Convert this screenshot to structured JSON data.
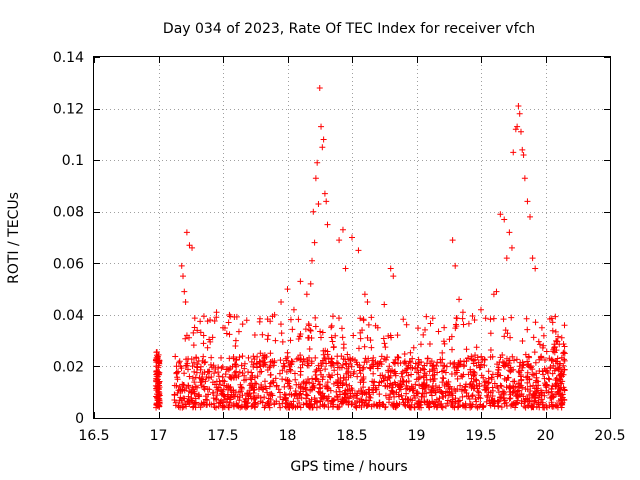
{
  "chart_data": {
    "type": "scatter",
    "title": "Day 034 of 2023, Rate Of TEC Index for receiver vfch",
    "xlabel": "GPS time / hours",
    "ylabel": "ROTI / TECUs",
    "xlim": [
      16.5,
      20.5
    ],
    "ylim": [
      0,
      0.14
    ],
    "xticks": [
      16.5,
      17,
      17.5,
      18,
      18.5,
      19,
      19.5,
      20,
      20.5
    ],
    "xtick_labels": [
      "16.5",
      "17",
      "17.5",
      "18",
      "18.5",
      "19",
      "19.5",
      "20",
      "20.5"
    ],
    "yticks": [
      0,
      0.02,
      0.04,
      0.06,
      0.08,
      0.1,
      0.12,
      0.14
    ],
    "ytick_labels": [
      "0",
      "0.02",
      "0.04",
      "0.06",
      "0.08",
      "0.1",
      "0.12",
      "0.14"
    ],
    "grid": true,
    "marker": "plus",
    "color": "#ff0000",
    "time_range": [
      16.98,
      20.15
    ],
    "dense_band": [
      0.004,
      0.024
    ],
    "series": [
      {
        "name": "ROTI",
        "x": [
          17.18,
          17.2,
          17.22,
          17.24,
          17.26,
          17.27,
          17.21,
          17.19,
          18.2,
          18.22,
          18.23,
          18.25,
          18.26,
          18.27,
          18.28,
          18.29,
          18.3,
          18.31,
          18.24,
          18.21,
          18.19,
          18.18,
          18.4,
          18.43,
          18.45,
          18.5,
          18.55,
          18.6,
          18.62,
          18.65,
          18.7,
          18.75,
          18.8,
          18.82,
          17.9,
          17.95,
          18.0,
          18.05,
          18.1,
          18.15,
          19.28,
          19.3,
          19.33,
          19.36,
          19.45,
          19.5,
          19.6,
          19.62,
          19.65,
          19.68,
          19.7,
          19.72,
          19.74,
          19.75,
          19.77,
          19.78,
          19.79,
          19.8,
          19.81,
          19.82,
          19.83,
          19.84,
          19.86,
          19.88,
          19.9,
          19.92,
          17.4,
          17.45,
          17.5,
          17.55,
          17.6,
          17.3,
          17.35
        ],
        "y": [
          0.059,
          0.049,
          0.072,
          0.067,
          0.066,
          0.033,
          0.045,
          0.055,
          0.08,
          0.093,
          0.099,
          0.128,
          0.113,
          0.105,
          0.108,
          0.087,
          0.084,
          0.075,
          0.083,
          0.068,
          0.061,
          0.052,
          0.069,
          0.073,
          0.058,
          0.07,
          0.065,
          0.048,
          0.045,
          0.039,
          0.035,
          0.044,
          0.058,
          0.055,
          0.04,
          0.045,
          0.05,
          0.042,
          0.053,
          0.048,
          0.069,
          0.059,
          0.046,
          0.041,
          0.038,
          0.042,
          0.048,
          0.049,
          0.079,
          0.077,
          0.062,
          0.072,
          0.066,
          0.103,
          0.112,
          0.113,
          0.121,
          0.118,
          0.111,
          0.104,
          0.102,
          0.093,
          0.084,
          0.078,
          0.062,
          0.058,
          0.038,
          0.041,
          0.035,
          0.04,
          0.03,
          0.034,
          0.032
        ]
      }
    ]
  }
}
